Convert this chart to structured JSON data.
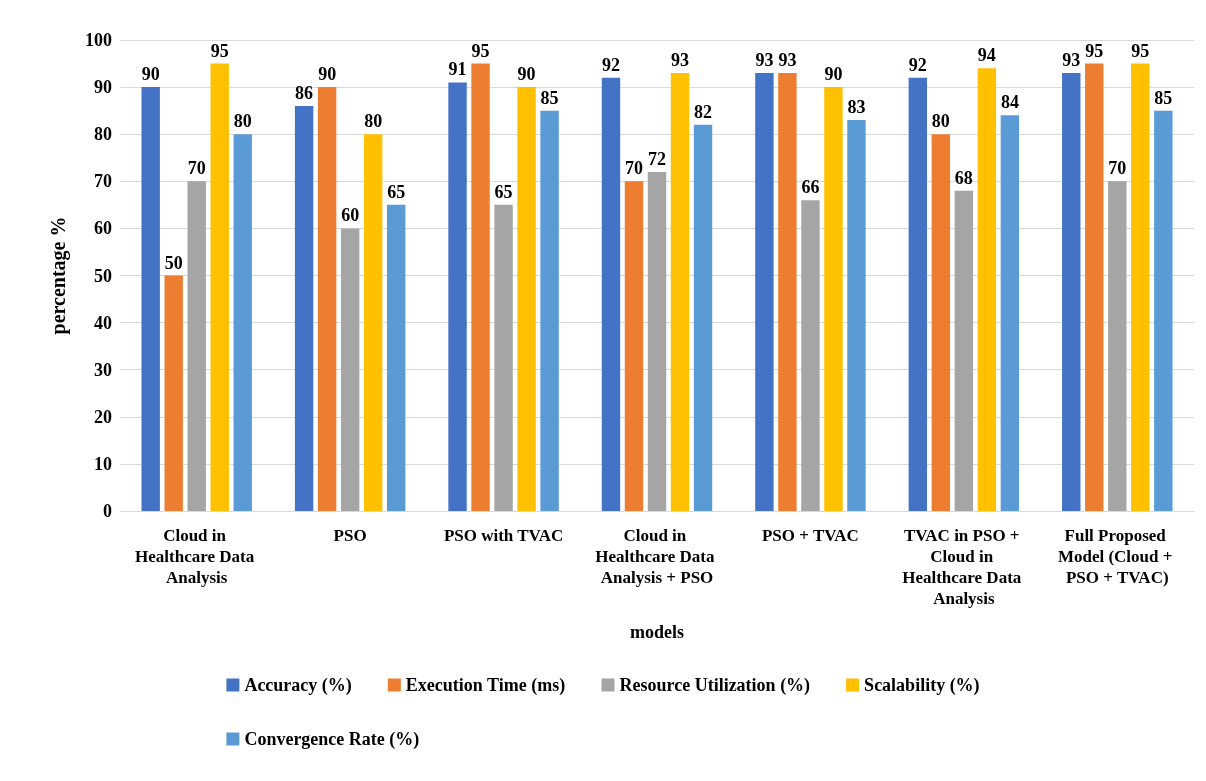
{
  "chart_data": {
    "type": "bar",
    "xlabel": "models",
    "ylabel": "percentage %",
    "categories": [
      "Cloud in Healthcare Data Analysis",
      "PSO",
      "PSO with TVAC",
      "Cloud in Healthcare Data Analysis + PSO",
      "PSO + TVAC",
      "TVAC in PSO + Cloud in Healthcare Data Analysis",
      "Full Proposed Model (Cloud + PSO + TVAC)"
    ],
    "series": [
      {
        "name": "Accuracy (%)",
        "color": "#4472c4",
        "values": [
          90,
          86,
          91,
          92,
          93,
          92,
          93
        ]
      },
      {
        "name": "Execution Time (ms)",
        "color": "#ed7d31",
        "values": [
          50,
          90,
          95,
          70,
          93,
          80,
          95
        ]
      },
      {
        "name": "Resource Utilization (%)",
        "color": "#a5a5a5",
        "values": [
          70,
          60,
          65,
          72,
          66,
          68,
          70
        ]
      },
      {
        "name": "Scalability (%)",
        "color": "#ffc000",
        "values": [
          95,
          80,
          90,
          93,
          90,
          94,
          95
        ]
      },
      {
        "name": "Convergence Rate (%)",
        "color": "#5b9bd5",
        "values": [
          80,
          65,
          85,
          82,
          83,
          84,
          85
        ]
      }
    ],
    "ylim": [
      0,
      100
    ],
    "yticks": [
      0,
      10,
      20,
      30,
      40,
      50,
      60,
      70,
      80,
      90,
      100
    ],
    "grid": "y",
    "legend": "bottom",
    "data_labels": true
  }
}
